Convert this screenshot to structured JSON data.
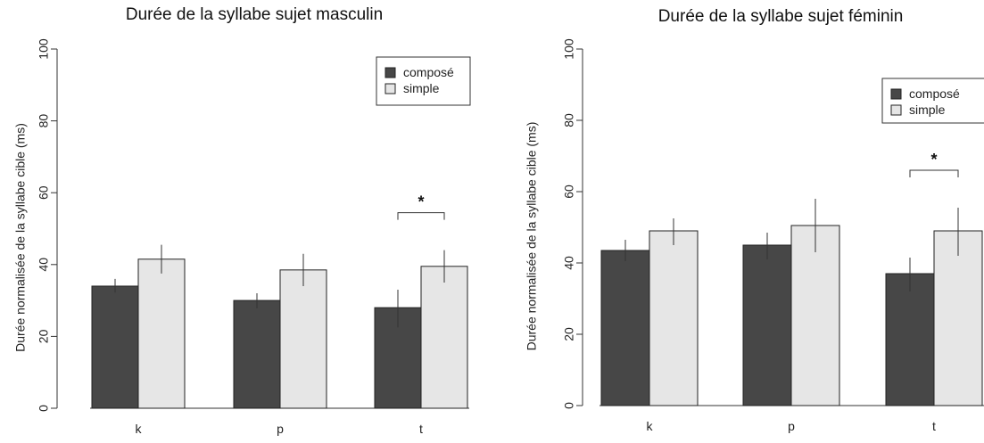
{
  "chart_data": [
    {
      "type": "bar",
      "title": "Durée de la syllabe sujet masculin",
      "ylabel": "Durée normalisée de la syllabe cible (ms)",
      "xlabel": "",
      "categories": [
        "k",
        "p",
        "t"
      ],
      "ylim": [
        0,
        100
      ],
      "yticks": [
        0,
        20,
        40,
        60,
        80,
        100
      ],
      "legend_position": "top-right",
      "series": [
        {
          "name": "composé",
          "color": "#474747",
          "values": [
            34,
            30,
            28
          ],
          "err_low": [
            32.2,
            27.8,
            22.5
          ],
          "err_high": [
            36,
            32,
            33
          ]
        },
        {
          "name": "simple",
          "color": "#e6e6e6",
          "values": [
            41.5,
            38.5,
            39.5
          ],
          "err_low": [
            37.5,
            34,
            35
          ],
          "err_high": [
            45.5,
            43,
            44
          ]
        }
      ],
      "significance": [
        {
          "category": "t",
          "label": "*"
        }
      ]
    },
    {
      "type": "bar",
      "title": "Durée de la syllabe sujet féminin",
      "ylabel": "Durée normalisée de la syllabe cible (ms)",
      "xlabel": "",
      "categories": [
        "k",
        "p",
        "t"
      ],
      "ylim": [
        0,
        100
      ],
      "yticks": [
        0,
        20,
        40,
        60,
        80,
        100
      ],
      "legend_position": "top-right",
      "series": [
        {
          "name": "composé",
          "color": "#474747",
          "values": [
            43.5,
            45,
            37
          ],
          "err_low": [
            40.5,
            41,
            32
          ],
          "err_high": [
            46.5,
            48.5,
            41.5
          ]
        },
        {
          "name": "simple",
          "color": "#e6e6e6",
          "values": [
            49,
            50.5,
            49
          ],
          "err_low": [
            45,
            43,
            42
          ],
          "err_high": [
            52.5,
            58,
            55.5
          ]
        }
      ],
      "significance": [
        {
          "category": "t",
          "label": "*"
        }
      ]
    }
  ]
}
